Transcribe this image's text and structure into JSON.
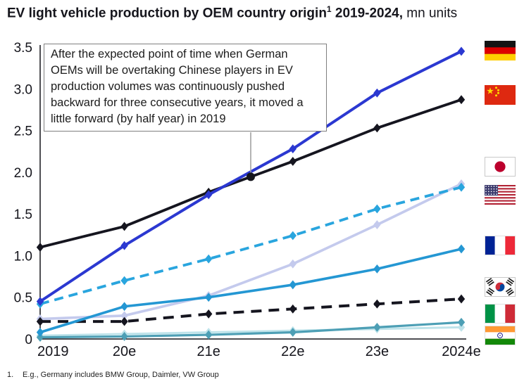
{
  "title": {
    "bold_pre": "EV light vehicle production by OEM country origin",
    "superscript": "1",
    "bold_post": " 2019-2024,",
    "units": " mn units"
  },
  "footnote": {
    "index": "1.",
    "text": "E.g., Germany includes BMW Group, Daimler, VW Group"
  },
  "chart_data": {
    "type": "line",
    "title": "EV light vehicle production by OEM country origin 2019-2024, mn units",
    "xlabel": "",
    "ylabel": "mn units",
    "x_categories": [
      "2019",
      "20e",
      "21e",
      "22e",
      "23e",
      "2024e"
    ],
    "ylim": [
      0,
      3.5
    ],
    "yticks": [
      0,
      0.5,
      1.0,
      1.5,
      2.0,
      2.5,
      3.0,
      3.5
    ],
    "ytick_labels": [
      "0",
      "0.5",
      "1.0",
      "1.5",
      "2.0",
      "2.5",
      "3.0",
      "3.5"
    ],
    "grid": false,
    "marker": "diamond",
    "legend": {
      "position": "right-edge-flags-top-to-bottom",
      "entries": [
        "Germany",
        "China",
        "Japan",
        "USA",
        "France",
        "South Korea",
        "Italy",
        "India"
      ]
    },
    "series": [
      {
        "name": "Germany",
        "color": "#2b38d1",
        "style": "solid",
        "values": [
          0.45,
          1.12,
          1.73,
          2.28,
          2.95,
          3.45
        ]
      },
      {
        "name": "China",
        "color": "#15151f",
        "style": "solid",
        "values": [
          1.1,
          1.35,
          1.76,
          2.13,
          2.53,
          2.87
        ]
      },
      {
        "name": "Japan",
        "color": "#c4caed",
        "style": "solid",
        "values": [
          0.24,
          0.28,
          0.52,
          0.9,
          1.37,
          1.86
        ]
      },
      {
        "name": "USA",
        "color": "#29a5de",
        "style": "dashed",
        "values": [
          0.42,
          0.7,
          0.96,
          1.24,
          1.56,
          1.82
        ]
      },
      {
        "name": "France",
        "color": "#2497d3",
        "style": "solid",
        "values": [
          0.08,
          0.39,
          0.5,
          0.65,
          0.84,
          1.08
        ]
      },
      {
        "name": "South Korea",
        "color": "#15151f",
        "style": "dashed",
        "values": [
          0.21,
          0.21,
          0.3,
          0.36,
          0.42,
          0.48
        ]
      },
      {
        "name": "Italy",
        "color": "#4d9fb5",
        "style": "solid",
        "values": [
          0.02,
          0.03,
          0.05,
          0.08,
          0.14,
          0.2
        ]
      },
      {
        "name": "India",
        "color": "#bee3ea",
        "style": "solid",
        "values": [
          0.04,
          0.06,
          0.08,
          0.1,
          0.12,
          0.14
        ]
      }
    ],
    "annotation": {
      "text": "After the expected point of time when German OEMs will be overtaking Chinese players in EV production volumes was continuously pushed backward for three consecutive years, it moved a little forward (by half year) in 2019",
      "points_to": {
        "x": "mid-2021",
        "series": "China",
        "value": 1.945
      }
    }
  }
}
